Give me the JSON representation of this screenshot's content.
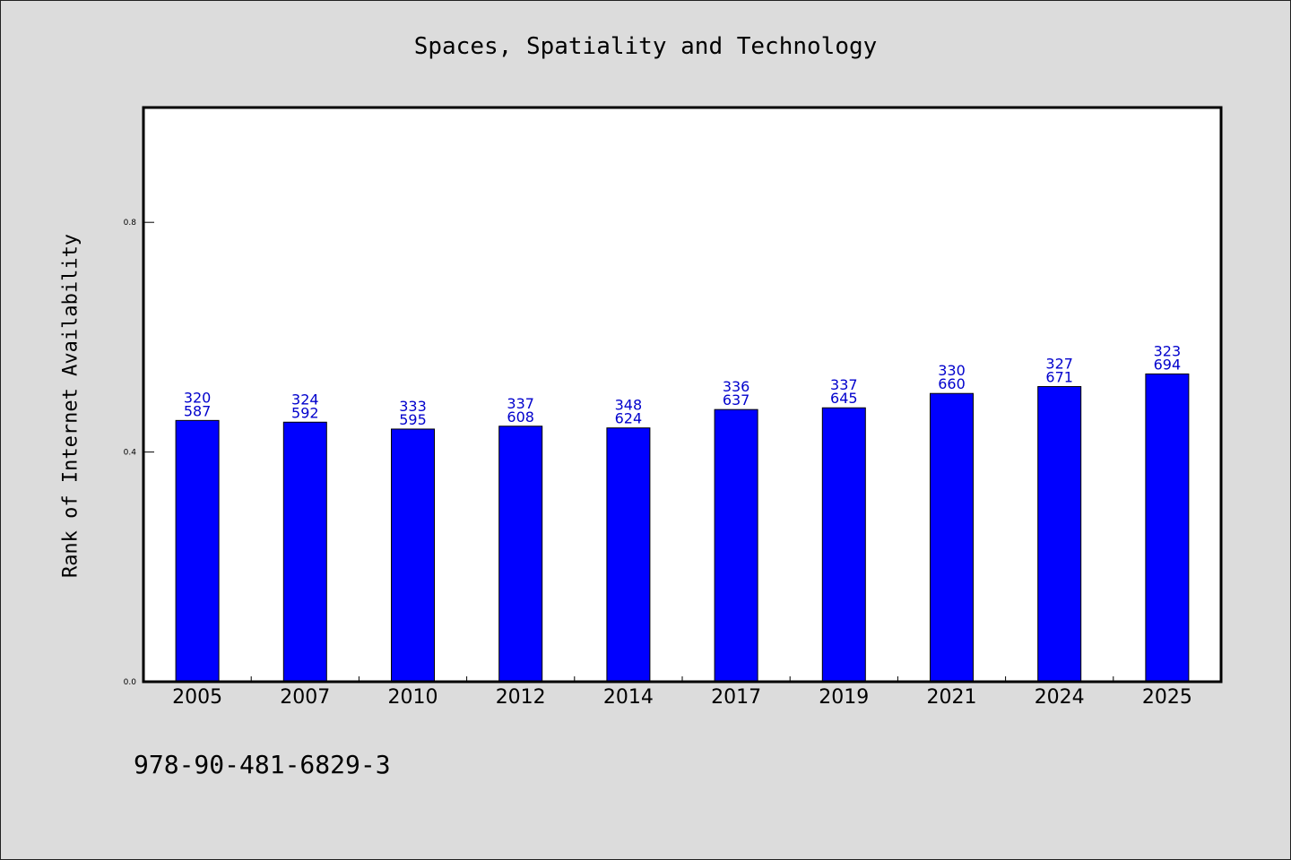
{
  "chart_data": {
    "type": "bar",
    "title": "Spaces, Spatiality and Technology",
    "xlabel": "",
    "ylabel": "Rank of Internet Availability",
    "categories": [
      "2005",
      "2007",
      "2010",
      "2012",
      "2014",
      "2017",
      "2019",
      "2021",
      "2024",
      "2025"
    ],
    "values": [
      0.455,
      0.452,
      0.44,
      0.445,
      0.442,
      0.474,
      0.477,
      0.502,
      0.514,
      0.536
    ],
    "bar_labels_top": [
      "320",
      "324",
      "333",
      "337",
      "348",
      "336",
      "337",
      "330",
      "327",
      "323"
    ],
    "bar_labels_bottom": [
      "587",
      "592",
      "595",
      "608",
      "624",
      "637",
      "645",
      "660",
      "671",
      "694"
    ],
    "yticks": [
      "0.0",
      "0.4",
      "0.8"
    ],
    "ylim": [
      0,
      1.0
    ],
    "grid": false,
    "legend": "none",
    "bar_color": "#0000ff",
    "label_color": "#0000cc"
  },
  "footer": {
    "isbn": "978-90-481-6829-3"
  }
}
